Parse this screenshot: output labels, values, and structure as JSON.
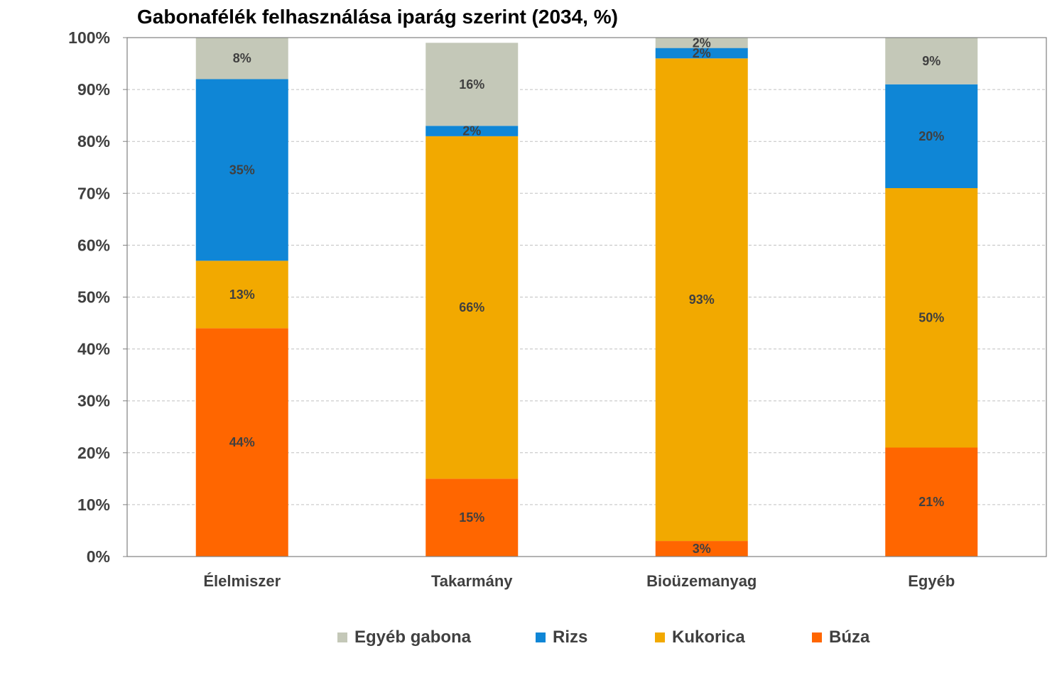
{
  "chart_data": {
    "type": "bar",
    "stacked": true,
    "title": "Gabonafélék felhasználása iparág szerint (2034, %)",
    "xlabel": "",
    "ylabel": "",
    "ylim": [
      0,
      100
    ],
    "y_ticks": [
      "0%",
      "10%",
      "20%",
      "30%",
      "40%",
      "50%",
      "60%",
      "70%",
      "80%",
      "90%",
      "100%"
    ],
    "grid": true,
    "legend_position": "bottom",
    "categories": [
      "Élelmiszer",
      "Takarmány",
      "Bioüzemanyag",
      "Egyéb"
    ],
    "series": [
      {
        "name": "Búza",
        "color": "#ff6600",
        "values": [
          44,
          15,
          3,
          21
        ],
        "labels": [
          "44%",
          "15%",
          "3%",
          "21%"
        ]
      },
      {
        "name": "Kukorica",
        "color": "#f2a900",
        "values": [
          13,
          66,
          93,
          50
        ],
        "labels": [
          "13%",
          "66%",
          "93%",
          "50%"
        ]
      },
      {
        "name": "Rizs",
        "color": "#0f86d6",
        "values": [
          35,
          2,
          2,
          20
        ],
        "labels": [
          "35%",
          "2%",
          "2%",
          "20%"
        ]
      },
      {
        "name": "Egyéb gabona",
        "color": "#c4c8b8",
        "values": [
          8,
          16,
          2,
          9
        ],
        "labels": [
          "8%",
          "16%",
          "2%",
          "9%"
        ]
      }
    ],
    "legend_order": [
      "Egyéb gabona",
      "Rizs",
      "Kukorica",
      "Búza"
    ]
  }
}
